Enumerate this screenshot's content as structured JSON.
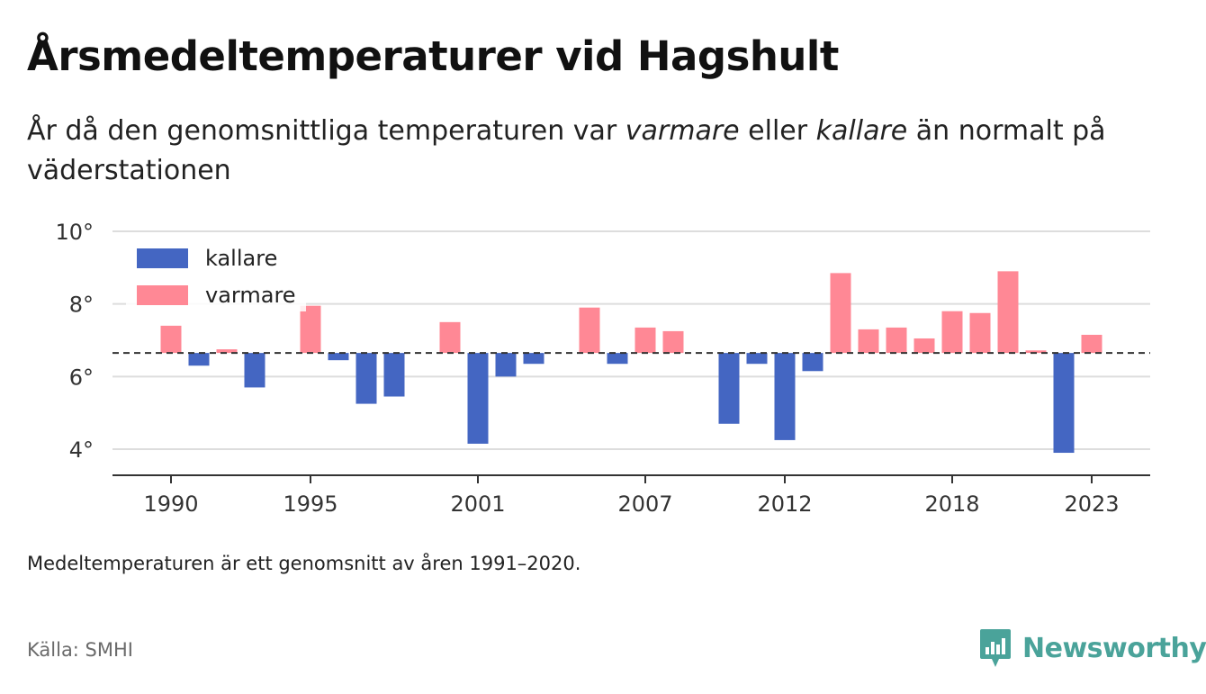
{
  "title": "Årsmedeltemperaturer vid Hagshult",
  "subtitle": {
    "part1": "År då den genomsnittliga temperaturen var ",
    "em1": "varmare",
    "part2": " eller ",
    "em2": "kallare",
    "part3": " än normalt på väderstationen"
  },
  "note": "Medeltemperaturen är ett genomsnitt av åren 1991–2020.",
  "source": "Källa: SMHI",
  "logo": {
    "text": "Newsworthy",
    "icon": "newsworthy-logo-icon",
    "color": "#4aa39a"
  },
  "colors": {
    "kallare": "#4466c2",
    "varmare": "#ff8895",
    "grid": "#dddddd",
    "axis": "#333333",
    "normal_line": "#333333"
  },
  "chart_data": {
    "type": "bar",
    "baseline": 6.65,
    "baseline_style": "dashed",
    "ylim": [
      3.3,
      10.3
    ],
    "yticks": [
      4,
      6,
      8,
      10
    ],
    "ytick_labels": [
      "4°",
      "6°",
      "8°",
      "10°"
    ],
    "xticks": [
      1990,
      1995,
      2001,
      2007,
      2012,
      2018,
      2023
    ],
    "xtick_labels": [
      "1990",
      "1995",
      "2001",
      "2007",
      "2012",
      "2018",
      "2023"
    ],
    "grid": true,
    "legend": {
      "position": "top-left",
      "entries": [
        {
          "label": "kallare",
          "color": "#4466c2"
        },
        {
          "label": "varmare",
          "color": "#ff8895"
        }
      ]
    },
    "categories": [
      1990,
      1991,
      1992,
      1993,
      1994,
      1995,
      1996,
      1997,
      1998,
      1999,
      2000,
      2001,
      2002,
      2003,
      2004,
      2005,
      2006,
      2007,
      2008,
      2009,
      2010,
      2011,
      2012,
      2013,
      2014,
      2015,
      2016,
      2017,
      2018,
      2019,
      2020,
      2021,
      2022,
      2023
    ],
    "values": [
      7.4,
      6.3,
      6.75,
      5.7,
      null,
      7.95,
      6.45,
      5.25,
      5.45,
      null,
      7.5,
      4.15,
      6.0,
      6.35,
      null,
      7.9,
      6.35,
      7.35,
      7.25,
      null,
      4.7,
      6.35,
      4.25,
      6.15,
      8.85,
      7.3,
      7.35,
      7.05,
      7.8,
      7.75,
      8.9,
      6.72,
      3.9,
      7.15
    ]
  }
}
